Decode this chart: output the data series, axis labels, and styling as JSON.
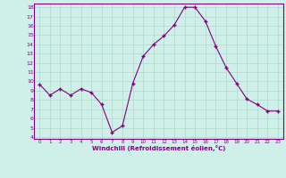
{
  "x": [
    0,
    1,
    2,
    3,
    4,
    5,
    6,
    7,
    8,
    9,
    10,
    11,
    12,
    13,
    14,
    15,
    16,
    17,
    18,
    19,
    20,
    21,
    22,
    23
  ],
  "y": [
    9.7,
    8.5,
    9.2,
    8.5,
    9.2,
    8.8,
    7.5,
    4.5,
    5.2,
    9.8,
    12.7,
    14.0,
    14.9,
    16.1,
    18.0,
    18.0,
    16.5,
    13.8,
    11.5,
    9.8,
    8.1,
    7.5,
    6.8,
    6.8
  ],
  "line_color": "#800080",
  "marker_color": "#800080",
  "bg_color": "#cff0e8",
  "grid_color": "#b0d8cc",
  "text_color": "#800080",
  "xlabel": "Windchill (Refroidissement éolien,°C)",
  "ylim": [
    4,
    18
  ],
  "xlim": [
    -0.5,
    23.5
  ],
  "yticks": [
    4,
    5,
    6,
    7,
    8,
    9,
    10,
    11,
    12,
    13,
    14,
    15,
    16,
    17,
    18
  ],
  "xticks": [
    0,
    1,
    2,
    3,
    4,
    5,
    6,
    7,
    8,
    9,
    10,
    11,
    12,
    13,
    14,
    15,
    16,
    17,
    18,
    19,
    20,
    21,
    22,
    23
  ]
}
